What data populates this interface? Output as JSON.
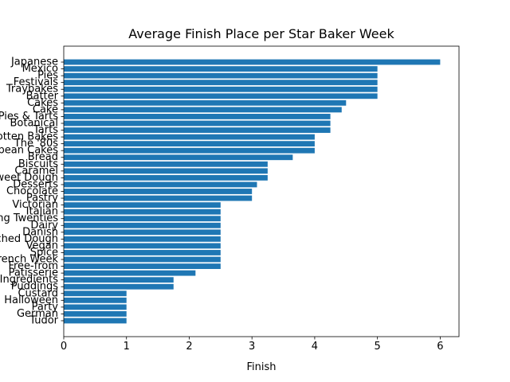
{
  "chart_data": {
    "type": "bar",
    "orientation": "horizontal",
    "title": "Average Finish Place per Star Baker Week",
    "xlabel": "Finish",
    "ylabel": "",
    "xlim": [
      0,
      6.3
    ],
    "xticks": [
      0,
      1,
      2,
      3,
      4,
      5,
      6
    ],
    "bar_color": "#1f77b4",
    "grid": false,
    "categories": [
      "Japanese",
      "Mexico",
      "Pies",
      "Festivals",
      "Traybakes",
      "Batter",
      "Cakes",
      "Cake",
      "Pies & Tarts",
      "Botanical",
      "Tarts",
      "Forgotten Bakes",
      "The '80s",
      "European Cakes",
      "Bread",
      "Biscuits",
      "Caramel",
      "Sweet Dough",
      "Desserts",
      "Chocolate",
      "Pastry",
      "Victorian",
      "Italian",
      "Roaring Twenties",
      "Dairy",
      "Danish",
      "Enriched Dough",
      "Vegan",
      "Spice",
      "French Week",
      "Free-from",
      "Patisserie",
      "Alternative Ingredients",
      "Puddings",
      "Custard",
      "Halloween",
      "Party",
      "German",
      "Tudor"
    ],
    "values": [
      6.0,
      5.0,
      5.0,
      5.0,
      5.0,
      5.0,
      4.5,
      4.43,
      4.25,
      4.25,
      4.25,
      4.0,
      4.0,
      4.0,
      3.65,
      3.25,
      3.25,
      3.25,
      3.08,
      3.0,
      3.0,
      2.5,
      2.5,
      2.5,
      2.5,
      2.5,
      2.5,
      2.5,
      2.5,
      2.5,
      2.5,
      2.1,
      1.75,
      1.75,
      1.0,
      1.0,
      1.0,
      1.0,
      1.0
    ]
  }
}
